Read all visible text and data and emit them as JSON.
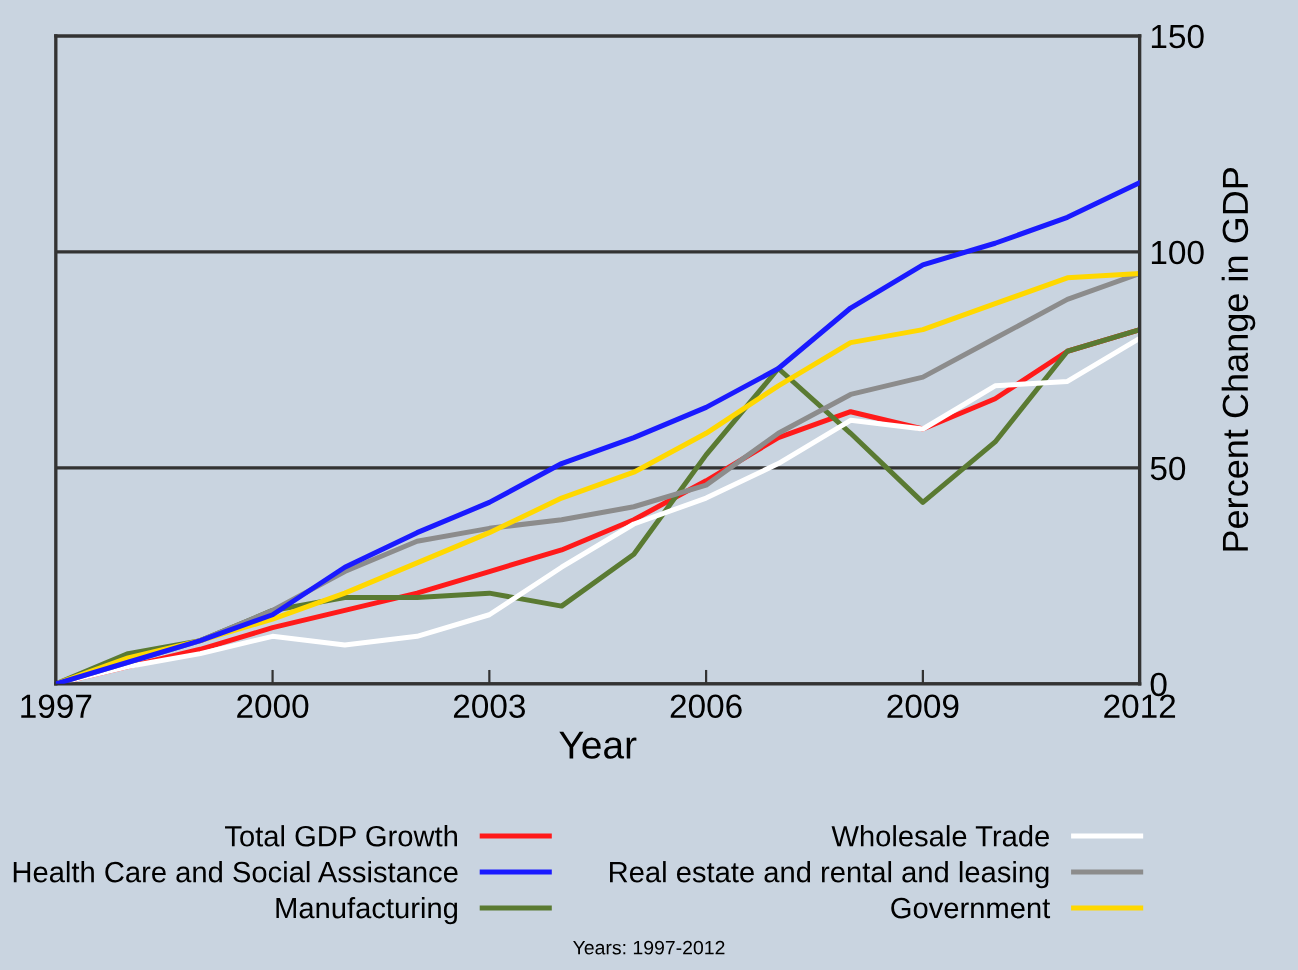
{
  "chart_data": {
    "type": "line",
    "xlabel": "Year",
    "ylabel": "Percent Change in GDP",
    "x": [
      1997,
      1998,
      1999,
      2000,
      2001,
      2002,
      2003,
      2004,
      2005,
      2006,
      2007,
      2008,
      2009,
      2010,
      2011,
      2012
    ],
    "series": [
      {
        "name": "Total GDP Growth",
        "color": "#ff1a1a",
        "values": [
          0,
          4,
          8,
          13,
          17,
          21,
          26,
          31,
          38,
          47,
          57,
          63,
          59,
          66,
          77,
          82
        ]
      },
      {
        "name": "Health Care and Social Assistance",
        "color": "#1a1aff",
        "values": [
          0,
          5,
          10,
          16,
          27,
          35,
          42,
          51,
          57,
          64,
          73,
          87,
          97,
          102,
          108,
          116
        ]
      },
      {
        "name": "Manufacturing",
        "color": "#5a7a32",
        "values": [
          0,
          7,
          10,
          17,
          20,
          20,
          21,
          18,
          30,
          53,
          73,
          58,
          42,
          56,
          77,
          82
        ]
      },
      {
        "name": "Wholesale Trade",
        "color": "#ffffff",
        "values": [
          0,
          4,
          7,
          11,
          9,
          11,
          16,
          27,
          37,
          43,
          51,
          61,
          59,
          69,
          70,
          80
        ]
      },
      {
        "name": "Real estate and rental and leasing",
        "color": "#8c8c8c",
        "values": [
          0,
          5,
          10,
          17,
          26,
          33,
          36,
          38,
          41,
          46,
          58,
          67,
          71,
          80,
          89,
          95
        ]
      },
      {
        "name": "Government",
        "color": "#ffd800",
        "values": [
          0,
          6,
          10,
          15,
          21,
          28,
          35,
          43,
          49,
          58,
          69,
          79,
          82,
          88,
          94,
          95
        ]
      }
    ],
    "xlim": [
      1997,
      2012
    ],
    "xticks": [
      1997,
      2000,
      2003,
      2006,
      2009,
      2012
    ],
    "ylim": [
      0,
      150
    ],
    "yticks": [
      0,
      50,
      100,
      150
    ],
    "grid": "y",
    "legend": "bottom",
    "line_style": "solid",
    "marker": "none",
    "annotations": [
      "Years: 1997-2012"
    ]
  }
}
